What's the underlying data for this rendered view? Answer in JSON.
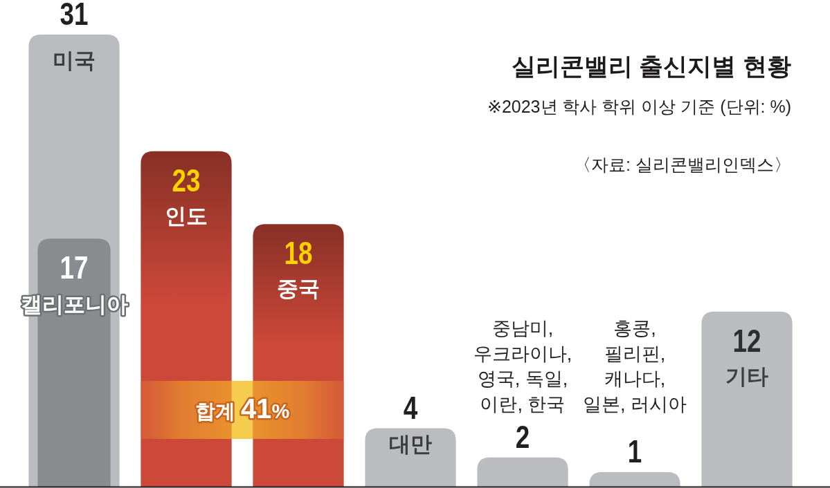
{
  "chart_data": {
    "type": "bar",
    "title": "실리콘밸리 출신지별 현황",
    "subtitle": "※2023년 학사 학위 이상 기준 (단위: %)",
    "annotations": [
      "합계 41%",
      "〈자료: 실리콘밸리인덱스〉"
    ],
    "categories": [
      "미국",
      "인도",
      "중국",
      "대만",
      "중남미, 우크라이나, 영국, 독일, 이란, 한국",
      "홍콩, 필리핀, 캐나다, 일본, 러시아",
      "기타"
    ],
    "series": [
      {
        "values": [
          31,
          23,
          18,
          4,
          2,
          1,
          12
        ],
        "colors": [
          "#bbbcc0",
          "#cc4839",
          "#cc4839",
          "#bbbcc0",
          "#bbbcc0",
          "#bbbcc0",
          "#bbbcc0"
        ]
      },
      {
        "name": "캘리포니아",
        "values": [
          17,
          null,
          null,
          null,
          null,
          null,
          null
        ],
        "color": "#8a8b8f"
      }
    ],
    "tick_labels": "x",
    "data_labels": true
  }
}
